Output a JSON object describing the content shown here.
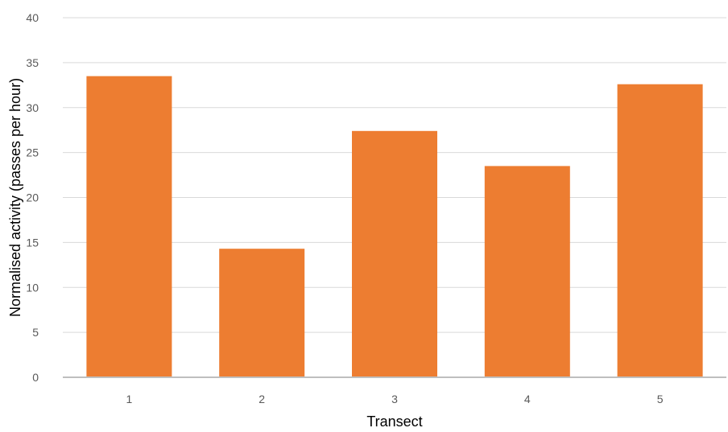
{
  "chart_data": {
    "type": "bar",
    "title": "",
    "xlabel": "Transect",
    "ylabel": "Normalised activity (passes per hour)",
    "categories": [
      "1",
      "2",
      "3",
      "4",
      "5"
    ],
    "values": [
      33.5,
      14.3,
      27.4,
      23.5,
      32.6
    ],
    "ylim": [
      0,
      40
    ],
    "yticks": [
      "0",
      "5",
      "10",
      "15",
      "20",
      "25",
      "30",
      "35",
      "40"
    ],
    "grid": true,
    "legend": "none",
    "colors": {
      "bar": "#ED7D31",
      "grid": "#D9D9D9",
      "axis": "#BFBFBF",
      "tick_text": "#595959"
    }
  }
}
